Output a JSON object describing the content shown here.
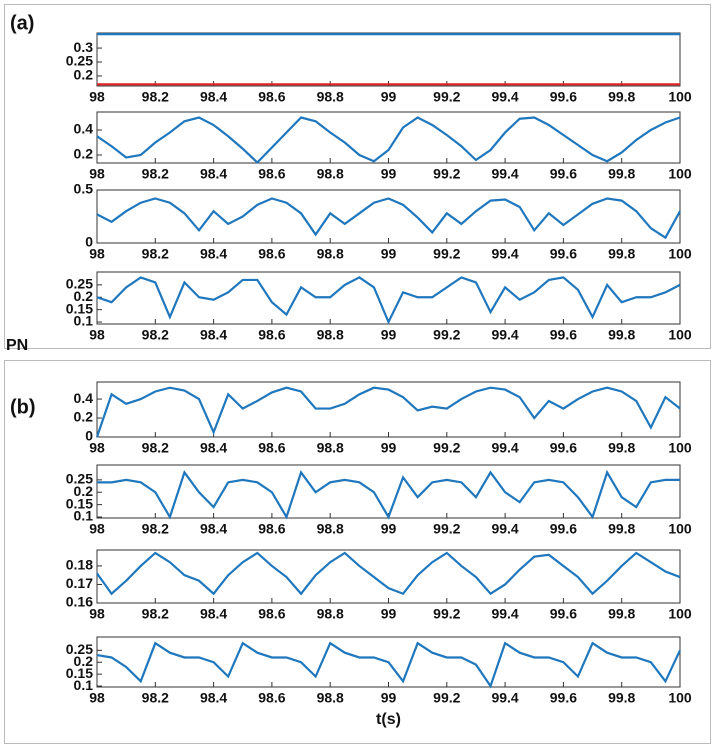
{
  "panel_labels": [
    "(a)",
    "PN",
    "(b)"
  ],
  "chart_data": [
    {
      "type": "line",
      "x": [
        98,
        100
      ],
      "xlim": [
        98,
        100
      ],
      "xticks": [
        98,
        98.2,
        98.4,
        98.6,
        98.8,
        99,
        99.2,
        99.4,
        99.6,
        99.8,
        100
      ],
      "ylim": [
        0.164,
        0.354
      ],
      "yticks": [
        0.2,
        0.25,
        0.3
      ],
      "series": [
        {
          "color": "#1f77bd",
          "values": [
            0.35,
            0.35
          ]
        },
        {
          "color": "#e02020",
          "values": [
            0.17,
            0.17
          ]
        }
      ]
    },
    {
      "type": "line",
      "x": [
        98,
        98.05,
        98.1,
        98.15,
        98.2,
        98.25,
        98.3,
        98.35,
        98.4,
        98.45,
        98.5,
        98.55,
        98.6,
        98.65,
        98.7,
        98.75,
        98.8,
        98.85,
        98.9,
        98.95,
        99,
        99.05,
        99.1,
        99.15,
        99.2,
        99.25,
        99.3,
        99.35,
        99.4,
        99.45,
        99.5,
        99.55,
        99.6,
        99.65,
        99.7,
        99.75,
        99.8,
        99.85,
        99.9,
        99.95,
        100
      ],
      "xlim": [
        98,
        100
      ],
      "xticks": [
        98,
        98.2,
        98.4,
        98.6,
        98.8,
        99,
        99.2,
        99.4,
        99.6,
        99.8,
        100
      ],
      "ylim": [
        0.136,
        0.544
      ],
      "yticks": [
        0.2,
        0.4
      ],
      "series": [
        {
          "color": "#1f77bd",
          "values": [
            0.35,
            0.27,
            0.18,
            0.2,
            0.3,
            0.38,
            0.47,
            0.5,
            0.44,
            0.35,
            0.25,
            0.14,
            0.26,
            0.38,
            0.5,
            0.47,
            0.38,
            0.3,
            0.2,
            0.15,
            0.24,
            0.42,
            0.5,
            0.44,
            0.36,
            0.27,
            0.16,
            0.24,
            0.38,
            0.49,
            0.5,
            0.44,
            0.36,
            0.28,
            0.2,
            0.15,
            0.22,
            0.32,
            0.4,
            0.46,
            0.5
          ]
        }
      ]
    },
    {
      "type": "line",
      "x": [
        98,
        98.05,
        98.1,
        98.15,
        98.2,
        98.25,
        98.3,
        98.35,
        98.4,
        98.45,
        98.5,
        98.55,
        98.6,
        98.65,
        98.7,
        98.75,
        98.8,
        98.85,
        98.9,
        98.95,
        99,
        99.05,
        99.1,
        99.15,
        99.2,
        99.25,
        99.3,
        99.35,
        99.4,
        99.45,
        99.5,
        99.55,
        99.6,
        99.65,
        99.7,
        99.75,
        99.8,
        99.85,
        99.9,
        99.95,
        100
      ],
      "xlim": [
        98,
        100
      ],
      "xticks": [
        98,
        98.2,
        98.4,
        98.6,
        98.8,
        99,
        99.2,
        99.4,
        99.6,
        99.8,
        100
      ],
      "ylim": [
        0,
        0.5
      ],
      "yticks": [
        0,
        0.5
      ],
      "series": [
        {
          "color": "#1f77bd",
          "values": [
            0.27,
            0.2,
            0.3,
            0.38,
            0.42,
            0.38,
            0.28,
            0.12,
            0.3,
            0.18,
            0.25,
            0.36,
            0.42,
            0.38,
            0.28,
            0.08,
            0.28,
            0.18,
            0.28,
            0.38,
            0.42,
            0.36,
            0.24,
            0.1,
            0.28,
            0.18,
            0.3,
            0.4,
            0.41,
            0.34,
            0.12,
            0.28,
            0.17,
            0.27,
            0.37,
            0.42,
            0.4,
            0.3,
            0.14,
            0.05,
            0.3
          ]
        }
      ]
    },
    {
      "type": "line",
      "x": [
        98,
        98.05,
        98.1,
        98.15,
        98.2,
        98.25,
        98.3,
        98.35,
        98.4,
        98.45,
        98.5,
        98.55,
        98.6,
        98.65,
        98.7,
        98.75,
        98.8,
        98.85,
        98.9,
        98.95,
        99,
        99.05,
        99.1,
        99.15,
        99.2,
        99.25,
        99.3,
        99.35,
        99.4,
        99.45,
        99.5,
        99.55,
        99.6,
        99.65,
        99.7,
        99.75,
        99.8,
        99.85,
        99.9,
        99.95,
        100
      ],
      "xlim": [
        98,
        100
      ],
      "xticks": [
        98,
        98.2,
        98.4,
        98.6,
        98.8,
        99,
        99.2,
        99.4,
        99.6,
        99.8,
        100
      ],
      "ylim": [
        0.092,
        0.302
      ],
      "yticks": [
        0.1,
        0.15,
        0.2,
        0.25
      ],
      "series": [
        {
          "color": "#1f77bd",
          "values": [
            0.2,
            0.18,
            0.24,
            0.28,
            0.26,
            0.12,
            0.26,
            0.2,
            0.19,
            0.22,
            0.27,
            0.27,
            0.18,
            0.13,
            0.24,
            0.2,
            0.2,
            0.25,
            0.28,
            0.24,
            0.1,
            0.22,
            0.2,
            0.2,
            0.24,
            0.28,
            0.26,
            0.14,
            0.24,
            0.19,
            0.22,
            0.27,
            0.28,
            0.23,
            0.12,
            0.25,
            0.18,
            0.2,
            0.2,
            0.22,
            0.25
          ]
        }
      ]
    },
    {
      "type": "line",
      "x": [
        98,
        98.05,
        98.1,
        98.15,
        98.2,
        98.25,
        98.3,
        98.35,
        98.4,
        98.45,
        98.5,
        98.55,
        98.6,
        98.65,
        98.7,
        98.75,
        98.8,
        98.85,
        98.9,
        98.95,
        99,
        99.05,
        99.1,
        99.15,
        99.2,
        99.25,
        99.3,
        99.35,
        99.4,
        99.45,
        99.5,
        99.55,
        99.6,
        99.65,
        99.7,
        99.75,
        99.8,
        99.85,
        99.9,
        99.95,
        100
      ],
      "xlim": [
        98,
        100
      ],
      "xticks": [
        98,
        98.2,
        98.4,
        98.6,
        98.8,
        99,
        99.2,
        99.4,
        99.6,
        99.8,
        100
      ],
      "ylim": [
        0,
        0.58
      ],
      "yticks": [
        0,
        0.2,
        0.4
      ],
      "series": [
        {
          "color": "#1f77bd",
          "values": [
            0.0,
            0.45,
            0.35,
            0.4,
            0.48,
            0.52,
            0.49,
            0.4,
            0.05,
            0.45,
            0.3,
            0.38,
            0.47,
            0.52,
            0.48,
            0.3,
            0.3,
            0.35,
            0.45,
            0.52,
            0.5,
            0.42,
            0.28,
            0.32,
            0.3,
            0.4,
            0.48,
            0.52,
            0.5,
            0.42,
            0.2,
            0.38,
            0.3,
            0.4,
            0.48,
            0.52,
            0.48,
            0.38,
            0.1,
            0.42,
            0.3
          ]
        }
      ]
    },
    {
      "type": "line",
      "x": [
        98,
        98.05,
        98.1,
        98.15,
        98.2,
        98.25,
        98.3,
        98.35,
        98.4,
        98.45,
        98.5,
        98.55,
        98.6,
        98.65,
        98.7,
        98.75,
        98.8,
        98.85,
        98.9,
        98.95,
        99,
        99.05,
        99.1,
        99.15,
        99.2,
        99.25,
        99.3,
        99.35,
        99.4,
        99.45,
        99.5,
        99.55,
        99.6,
        99.65,
        99.7,
        99.75,
        99.8,
        99.85,
        99.9,
        99.95,
        100
      ],
      "xlim": [
        98,
        100
      ],
      "xticks": [
        98,
        98.2,
        98.4,
        98.6,
        98.8,
        99,
        99.2,
        99.4,
        99.6,
        99.8,
        100
      ],
      "ylim": [
        0.096,
        0.31
      ],
      "yticks": [
        0.1,
        0.15,
        0.2,
        0.25
      ],
      "series": [
        {
          "color": "#1f77bd",
          "values": [
            0.24,
            0.24,
            0.25,
            0.24,
            0.2,
            0.1,
            0.28,
            0.2,
            0.14,
            0.24,
            0.25,
            0.24,
            0.2,
            0.1,
            0.28,
            0.2,
            0.24,
            0.25,
            0.24,
            0.2,
            0.1,
            0.26,
            0.18,
            0.24,
            0.25,
            0.24,
            0.18,
            0.28,
            0.2,
            0.16,
            0.24,
            0.25,
            0.24,
            0.18,
            0.1,
            0.28,
            0.18,
            0.14,
            0.24,
            0.25,
            0.25
          ]
        }
      ]
    },
    {
      "type": "line",
      "x": [
        98,
        98.05,
        98.1,
        98.15,
        98.2,
        98.25,
        98.3,
        98.35,
        98.4,
        98.45,
        98.5,
        98.55,
        98.6,
        98.65,
        98.7,
        98.75,
        98.8,
        98.85,
        98.9,
        98.95,
        99,
        99.05,
        99.1,
        99.15,
        99.2,
        99.25,
        99.3,
        99.35,
        99.4,
        99.45,
        99.5,
        99.55,
        99.6,
        99.65,
        99.7,
        99.75,
        99.8,
        99.85,
        99.9,
        99.95,
        100
      ],
      "xlim": [
        98,
        100
      ],
      "xticks": [
        98,
        98.2,
        98.4,
        98.6,
        98.8,
        99,
        99.2,
        99.4,
        99.6,
        99.8,
        100
      ],
      "ylim": [
        0.16,
        0.1886
      ],
      "yticks": [
        0.16,
        0.17,
        0.18
      ],
      "series": [
        {
          "color": "#1f77bd",
          "values": [
            0.176,
            0.165,
            0.172,
            0.18,
            0.187,
            0.182,
            0.175,
            0.172,
            0.165,
            0.175,
            0.182,
            0.187,
            0.18,
            0.174,
            0.165,
            0.175,
            0.182,
            0.187,
            0.18,
            0.174,
            0.168,
            0.165,
            0.175,
            0.182,
            0.187,
            0.18,
            0.174,
            0.165,
            0.17,
            0.178,
            0.185,
            0.186,
            0.18,
            0.174,
            0.165,
            0.172,
            0.18,
            0.187,
            0.182,
            0.177,
            0.174
          ]
        }
      ]
    },
    {
      "type": "line",
      "xlabel": "t(s)",
      "x": [
        98,
        98.05,
        98.1,
        98.15,
        98.2,
        98.25,
        98.3,
        98.35,
        98.4,
        98.45,
        98.5,
        98.55,
        98.6,
        98.65,
        98.7,
        98.75,
        98.8,
        98.85,
        98.9,
        98.95,
        99,
        99.05,
        99.1,
        99.15,
        99.2,
        99.25,
        99.3,
        99.35,
        99.4,
        99.45,
        99.5,
        99.55,
        99.6,
        99.65,
        99.7,
        99.75,
        99.8,
        99.85,
        99.9,
        99.95,
        100
      ],
      "xlim": [
        98,
        100
      ],
      "xticks": [
        98,
        98.2,
        98.4,
        98.6,
        98.8,
        99,
        99.2,
        99.4,
        99.6,
        99.8,
        100
      ],
      "ylim": [
        0.096,
        0.306
      ],
      "yticks": [
        0.1,
        0.15,
        0.2,
        0.25
      ],
      "series": [
        {
          "color": "#1f77bd",
          "values": [
            0.23,
            0.22,
            0.18,
            0.12,
            0.28,
            0.24,
            0.22,
            0.22,
            0.2,
            0.14,
            0.28,
            0.24,
            0.22,
            0.22,
            0.2,
            0.14,
            0.28,
            0.24,
            0.22,
            0.22,
            0.2,
            0.12,
            0.28,
            0.24,
            0.22,
            0.22,
            0.19,
            0.1,
            0.28,
            0.24,
            0.22,
            0.22,
            0.2,
            0.14,
            0.28,
            0.24,
            0.22,
            0.22,
            0.2,
            0.12,
            0.25
          ]
        }
      ]
    }
  ]
}
